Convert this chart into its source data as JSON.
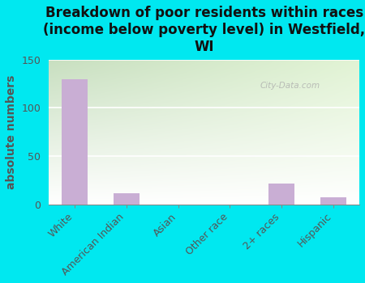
{
  "title": "Breakdown of poor residents within races\n(income below poverty level) in Westfield,\nWI",
  "categories": [
    "White",
    "American Indian",
    "Asian",
    "Other race",
    "2+ races",
    "Hispanic"
  ],
  "values": [
    130,
    11,
    0,
    0,
    21,
    7
  ],
  "bar_color": "#c9aed4",
  "ylabel": "absolute numbers",
  "ylim": [
    0,
    150
  ],
  "yticks": [
    0,
    50,
    100,
    150
  ],
  "background_color": "#00e8f0",
  "plot_bg_top_left": "#c8dfc0",
  "plot_bg_top_right": "#e8f4e0",
  "plot_bg_bottom": "#ffffff",
  "grid_color": "#ffffff",
  "title_fontsize": 12,
  "ylabel_fontsize": 10,
  "tick_fontsize": 9,
  "axis_color": "#888888",
  "watermark": "City-Data.com"
}
